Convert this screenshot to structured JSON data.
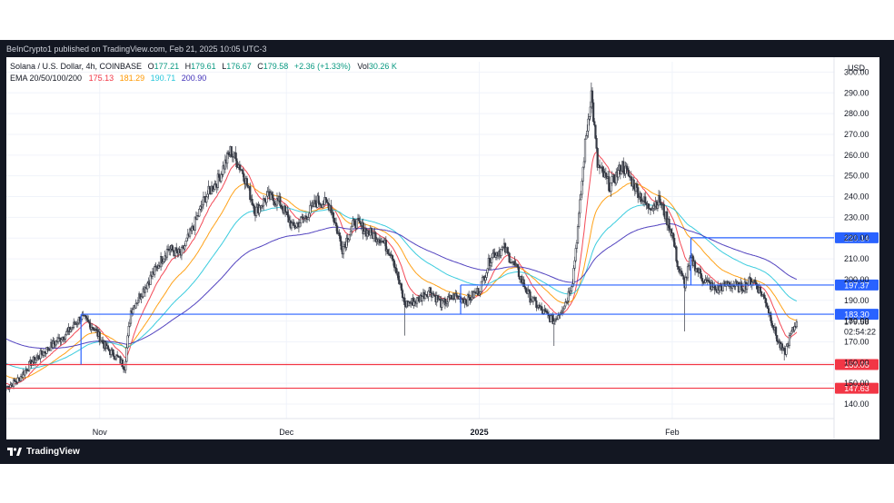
{
  "publisher": "BeInCrypto1 published on TradingView.com, Feb 21, 2025 10:05 UTC-3",
  "header": {
    "symbol": "Solana / U.S. Dollar, 4h, COINBASE",
    "ohlc": [
      {
        "k": "O",
        "v": "177.21"
      },
      {
        "k": "H",
        "v": "179.61"
      },
      {
        "k": "L",
        "v": "176.67"
      },
      {
        "k": "C",
        "v": "179.58"
      }
    ],
    "change": "+2.36 (+1.33%)",
    "vol_label": "Vol",
    "vol_value": "30.26 K",
    "ema_label": "EMA 20/50/100/200",
    "ema_values": [
      "175.13",
      "181.29",
      "190.71",
      "200.90"
    ]
  },
  "colors": {
    "up": "#363a45",
    "down": "#363a45",
    "ema20": "#f23645",
    "ema50": "#ff9800",
    "ema100": "#26c6da",
    "ema200": "#3f2fb8",
    "resistance": "#2962ff",
    "support": "#f23645",
    "background": "#ffffff",
    "frame": "#131722"
  },
  "footer_brand": "TradingView",
  "chart_data": {
    "type": "candlestick",
    "currency": "USD",
    "yticks": [
      "300.00",
      "290.00",
      "280.00",
      "270.00",
      "260.00",
      "250.00",
      "240.00",
      "230.00",
      "220.00",
      "210.00",
      "200.00",
      "190.00",
      "180.00",
      "170.00",
      "160.00",
      "150.00",
      "140.00"
    ],
    "xticks": [
      {
        "label": "Nov",
        "date": "2024-11-01"
      },
      {
        "label": "Dec",
        "date": "2024-12-01"
      },
      {
        "label": "2025",
        "date": "2025-01-01",
        "bold": true
      },
      {
        "label": "Feb",
        "date": "2025-02-01"
      }
    ],
    "x_range": [
      "2024-10-17",
      "2025-02-27"
    ],
    "y_range": [
      133,
      305
    ],
    "last_price": "179.58",
    "countdown": "02:54:22",
    "close_path": [
      [
        "2024-10-17",
        148
      ],
      [
        "2024-10-19",
        152
      ],
      [
        "2024-10-21",
        160
      ],
      [
        "2024-10-23",
        165
      ],
      [
        "2024-10-25",
        170
      ],
      [
        "2024-10-27",
        175
      ],
      [
        "2024-10-29",
        182
      ],
      [
        "2024-10-31",
        177
      ],
      [
        "2024-11-02",
        167
      ],
      [
        "2024-11-04",
        162
      ],
      [
        "2024-11-05",
        158
      ],
      [
        "2024-11-06",
        185
      ],
      [
        "2024-11-08",
        195
      ],
      [
        "2024-11-10",
        205
      ],
      [
        "2024-11-12",
        215
      ],
      [
        "2024-11-14",
        212
      ],
      [
        "2024-11-16",
        225
      ],
      [
        "2024-11-18",
        240
      ],
      [
        "2024-11-20",
        248
      ],
      [
        "2024-11-22",
        262
      ],
      [
        "2024-11-24",
        252
      ],
      [
        "2024-11-26",
        233
      ],
      [
        "2024-11-28",
        240
      ],
      [
        "2024-11-30",
        237
      ],
      [
        "2024-12-02",
        225
      ],
      [
        "2024-12-04",
        230
      ],
      [
        "2024-12-06",
        238
      ],
      [
        "2024-12-08",
        236
      ],
      [
        "2024-12-10",
        215
      ],
      [
        "2024-12-12",
        228
      ],
      [
        "2024-12-14",
        223
      ],
      [
        "2024-12-16",
        220
      ],
      [
        "2024-12-18",
        212
      ],
      [
        "2024-12-20",
        188
      ],
      [
        "2024-12-22",
        190
      ],
      [
        "2024-12-24",
        195
      ],
      [
        "2024-12-26",
        188
      ],
      [
        "2024-12-28",
        192
      ],
      [
        "2024-12-30",
        190
      ],
      [
        "2025-01-01",
        195
      ],
      [
        "2025-01-03",
        212
      ],
      [
        "2025-01-05",
        215
      ],
      [
        "2025-01-07",
        205
      ],
      [
        "2025-01-09",
        192
      ],
      [
        "2025-01-11",
        185
      ],
      [
        "2025-01-13",
        180
      ],
      [
        "2025-01-15",
        190
      ],
      [
        "2025-01-16",
        200
      ],
      [
        "2025-01-17",
        230
      ],
      [
        "2025-01-18",
        265
      ],
      [
        "2025-01-19",
        290
      ],
      [
        "2025-01-20",
        255
      ],
      [
        "2025-01-22",
        245
      ],
      [
        "2025-01-24",
        255
      ],
      [
        "2025-01-26",
        245
      ],
      [
        "2025-01-28",
        235
      ],
      [
        "2025-01-30",
        238
      ],
      [
        "2025-02-01",
        222
      ],
      [
        "2025-02-02",
        205
      ],
      [
        "2025-02-03",
        198
      ],
      [
        "2025-02-04",
        210
      ],
      [
        "2025-02-06",
        200
      ],
      [
        "2025-02-08",
        195
      ],
      [
        "2025-02-10",
        198
      ],
      [
        "2025-02-12",
        196
      ],
      [
        "2025-02-14",
        200
      ],
      [
        "2025-02-16",
        190
      ],
      [
        "2025-02-18",
        170
      ],
      [
        "2025-02-19",
        164
      ],
      [
        "2025-02-20",
        173
      ],
      [
        "2025-02-21",
        179.58
      ]
    ],
    "wicks": [
      {
        "date": "2024-11-05",
        "low": 155
      },
      {
        "date": "2024-12-20",
        "low": 173
      },
      {
        "date": "2025-01-13",
        "low": 168
      },
      {
        "date": "2025-01-19",
        "high": 295
      },
      {
        "date": "2025-02-03",
        "low": 175
      },
      {
        "date": "2025-02-19",
        "low": 161
      }
    ],
    "ema": [
      {
        "name": "EMA 20",
        "color": "#f23645",
        "lag": 3,
        "value": "175.13"
      },
      {
        "name": "EMA 50",
        "color": "#ff9800",
        "lag": 8,
        "value": "181.29"
      },
      {
        "name": "EMA 100",
        "color": "#26c6da",
        "lag": 16,
        "value": "190.71"
      },
      {
        "name": "EMA 200",
        "color": "#3f2fb8",
        "lag": 32,
        "value": "200.90"
      }
    ],
    "levels": [
      {
        "kind": "resistance",
        "value": 220.14,
        "label": "220.14",
        "start": "2025-02-04"
      },
      {
        "kind": "resistance",
        "value": 197.37,
        "label": "197.37",
        "start": "2024-12-29"
      },
      {
        "kind": "resistance",
        "value": 183.3,
        "label": "183.30",
        "start": "2024-10-29"
      },
      {
        "kind": "support",
        "value": 159.05,
        "label": "159.05",
        "start": "2024-10-17"
      },
      {
        "kind": "support",
        "value": 147.63,
        "label": "147.63",
        "start": "2024-10-17"
      }
    ],
    "step_lines": [
      {
        "kind": "resistance",
        "from": "2024-10-29",
        "to": "2024-10-29",
        "y1": 183.3,
        "y2": 159.05
      },
      {
        "kind": "resistance",
        "from": "2024-12-29",
        "to": "2024-12-29",
        "y1": 197.37,
        "y2": 183.3
      },
      {
        "kind": "resistance",
        "from": "2025-02-04",
        "to": "2025-02-04",
        "y1": 220.14,
        "y2": 197.37
      }
    ]
  }
}
